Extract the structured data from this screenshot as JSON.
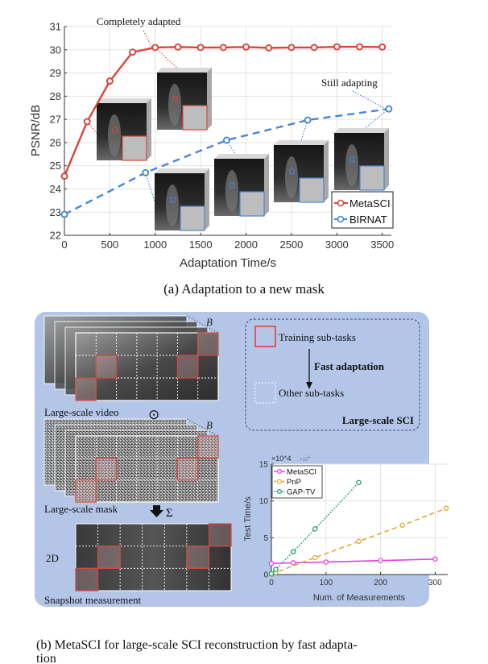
{
  "chart_data": [
    {
      "type": "line",
      "xlabel": "Adaptation Time/s",
      "ylabel": "PSNR/dB",
      "xlim": [
        0,
        3600
      ],
      "ylim": [
        22,
        31
      ],
      "xticks": [
        0,
        500,
        1000,
        1500,
        2000,
        2500,
        3000,
        3500
      ],
      "yticks": [
        22,
        23,
        24,
        25,
        26,
        27,
        28,
        29,
        30,
        31
      ],
      "grid": true,
      "legend_position": "bottom-right",
      "series": [
        {
          "name": "MetaSCI",
          "color": "#d9453b",
          "style": "solid",
          "x": [
            0,
            250,
            500,
            750,
            1000,
            1250,
            1500,
            1750,
            2000,
            2250,
            2500,
            2750,
            3000,
            3250,
            3500
          ],
          "y": [
            24.55,
            26.9,
            28.65,
            29.9,
            30.1,
            30.12,
            30.1,
            30.1,
            30.12,
            30.08,
            30.1,
            30.1,
            30.13,
            30.13,
            30.12
          ]
        },
        {
          "name": "BIRNAT",
          "color": "#4a86d6",
          "style": "dashed",
          "x": [
            0,
            893,
            1786,
            2679,
            3572
          ],
          "y": [
            22.9,
            24.7,
            26.1,
            26.97,
            27.45
          ]
        }
      ],
      "annotations": [
        "Completely adapted",
        "Still adapting"
      ]
    },
    {
      "type": "line",
      "xlabel": "Num. of Measurements",
      "ylabel": "Test Time/s",
      "y_multiplier": "×10^4",
      "xlim": [
        0,
        323
      ],
      "ylim": [
        0,
        15
      ],
      "xticks": [
        0,
        100,
        200,
        300
      ],
      "yticks": [
        0,
        5,
        10,
        15
      ],
      "grid": true,
      "legend_position": "top-left",
      "series": [
        {
          "name": "MetaSCI",
          "color": "#e83ee0",
          "style": "solid",
          "x": [
            0,
            40,
            100,
            200,
            300
          ],
          "y": [
            1.5,
            1.6,
            1.7,
            1.9,
            2.1
          ]
        },
        {
          "name": "PnP",
          "color": "#e6a82a",
          "style": "dashed",
          "x": [
            0,
            8,
            80,
            160,
            240,
            320
          ],
          "y": [
            0.05,
            0.3,
            2.3,
            4.5,
            6.7,
            9.0
          ]
        },
        {
          "name": "GAP-TV",
          "color": "#1f9a6a",
          "style": "dotted",
          "x": [
            0,
            8,
            40,
            80,
            160
          ],
          "y": [
            0.1,
            0.7,
            3.1,
            6.2,
            12.5
          ]
        }
      ]
    }
  ],
  "captions": {
    "a": "(a) Adaptation to a new mask",
    "b_line1": "(b) MetaSCI for large-scale SCI reconstruction by fast adapta-",
    "b_line2": "tion"
  },
  "diagram": {
    "video_label": "Large-scale video",
    "mask_label": "Large-scale mask",
    "snapshot_label": "Snapshot measurement",
    "b_symbol": "B",
    "odot_symbol": "⊙",
    "sum_symbol": "Σ",
    "dim_label": "2D",
    "legend_training": "Training sub-tasks",
    "legend_fast": "Fast adaptation",
    "legend_other": "Other sub-tasks",
    "legend_title": "Large-scale SCI",
    "panel_color": "#b3c6e8",
    "training_color": "#d9453b"
  },
  "top_annotations": {
    "completely": "Completely adapted",
    "still": "Still adapting"
  },
  "small_multiplier": {
    "base": "×10",
    "exp": "4"
  }
}
